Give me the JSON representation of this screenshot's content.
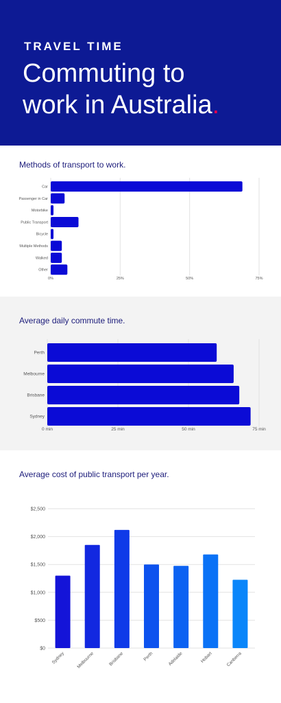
{
  "header": {
    "kicker": "TRAVEL TIME",
    "title_line1": "Commuting to",
    "title_line2": "work in Australia",
    "title_dot": ".",
    "background_color": "#0d1a94",
    "accent_color": "#e6004d"
  },
  "chart_data": [
    {
      "type": "bar",
      "orientation": "horizontal",
      "title": "Methods of transport to work.",
      "categories": [
        "Car",
        "Passenger in Car",
        "Motorbike",
        "Public Transport",
        "Bicycle",
        "Multiple Methods",
        "Walked",
        "Other"
      ],
      "values": [
        69,
        5,
        1,
        10,
        1,
        4,
        4,
        6
      ],
      "unit": "%",
      "xlim": [
        0,
        75
      ],
      "ticks": [
        "0%",
        "25%",
        "50%",
        "75%"
      ],
      "tick_values": [
        0,
        25,
        50,
        75
      ],
      "grid": true,
      "color": "#0b0bd6"
    },
    {
      "type": "bar",
      "orientation": "horizontal",
      "title": "Average daily commute time.",
      "categories": [
        "Perth",
        "Melbourne",
        "Brisbane",
        "Sydney"
      ],
      "values": [
        60,
        66,
        68,
        72
      ],
      "unit": "min",
      "xlim": [
        0,
        75
      ],
      "ticks": [
        "0 min",
        "25 min",
        "50 min",
        "75 min"
      ],
      "tick_values": [
        0,
        25,
        50,
        75
      ],
      "grid": true,
      "color": "#0b0bd6"
    },
    {
      "type": "bar",
      "orientation": "vertical",
      "title": "Average cost of public transport per year.",
      "categories": [
        "Sydney",
        "Melbourne",
        "Brisbane",
        "Perth",
        "Adelaide",
        "Hobart",
        "Canberra"
      ],
      "values": [
        1300,
        1850,
        2120,
        1500,
        1475,
        1680,
        1225
      ],
      "ylim": [
        0,
        2500
      ],
      "ticks": [
        "$0",
        "$500",
        "$1,000",
        "$1,500",
        "$2,000",
        "$2,500"
      ],
      "tick_values": [
        0,
        500,
        1000,
        1500,
        2000,
        2500
      ],
      "grid": true,
      "colors": [
        "#1414d8",
        "#1228e0",
        "#0f3ae8",
        "#0d52ee",
        "#0c62f2",
        "#0a72f6",
        "#0a86fa"
      ]
    }
  ]
}
